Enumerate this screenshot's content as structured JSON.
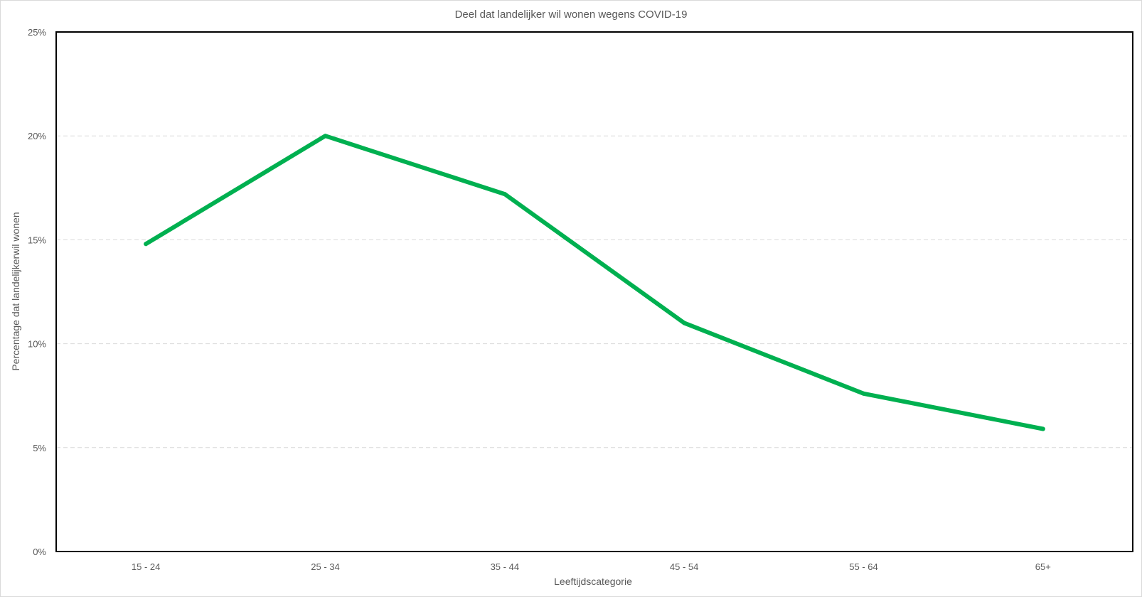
{
  "chart_data": {
    "type": "line",
    "title": "Deel dat landelijker wil wonen wegens COVID-19",
    "xlabel": "Leeftijdscategorie",
    "ylabel": "Percentage dat landelijkerwil wonen",
    "categories": [
      "15 - 24",
      "25 - 34",
      "35 - 44",
      "45 - 54",
      "55 - 64",
      "65+"
    ],
    "series": [
      {
        "values": [
          14.8,
          20.0,
          17.2,
          11.0,
          7.6,
          5.9
        ],
        "color": "#00b050"
      }
    ],
    "ylim": [
      0,
      25
    ],
    "yticks": [
      0,
      5,
      10,
      15,
      20,
      25
    ],
    "ytick_labels": [
      "0%",
      "5%",
      "10%",
      "15%",
      "20%",
      "25%"
    ],
    "grid": "horizontal dashed",
    "legend": "none"
  }
}
